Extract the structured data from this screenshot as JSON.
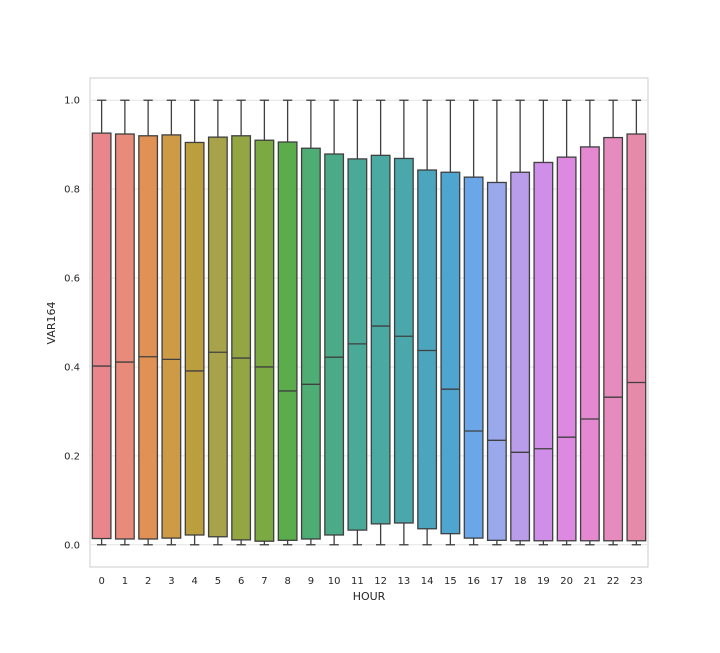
{
  "chart_data": {
    "type": "boxplot",
    "xlabel": "HOUR",
    "ylabel": "VAR164",
    "ylim": [
      -0.05,
      1.05
    ],
    "yticks": [
      "0.0",
      "0.2",
      "0.4",
      "0.6",
      "0.8",
      "1.0"
    ],
    "grid": "horizontal",
    "categories": [
      "0",
      "1",
      "2",
      "3",
      "4",
      "5",
      "6",
      "7",
      "8",
      "9",
      "10",
      "11",
      "12",
      "13",
      "14",
      "15",
      "16",
      "17",
      "18",
      "19",
      "20",
      "21",
      "22",
      "23"
    ],
    "boxes": [
      {
        "whislo": 0.0,
        "q1": 0.014,
        "med": 0.402,
        "q3": 0.926,
        "whishi": 1.0,
        "color": "#e8868c"
      },
      {
        "whislo": 0.0,
        "q1": 0.013,
        "med": 0.411,
        "q3": 0.924,
        "whishi": 1.0,
        "color": "#e88b7a"
      },
      {
        "whislo": 0.0,
        "q1": 0.013,
        "med": 0.423,
        "q3": 0.92,
        "whishi": 1.0,
        "color": "#e19154"
      },
      {
        "whislo": 0.0,
        "q1": 0.015,
        "med": 0.417,
        "q3": 0.922,
        "whishi": 1.0,
        "color": "#cd9a45"
      },
      {
        "whislo": 0.0,
        "q1": 0.022,
        "med": 0.391,
        "q3": 0.905,
        "whishi": 1.0,
        "color": "#bb9e3e"
      },
      {
        "whislo": 0.0,
        "q1": 0.018,
        "med": 0.433,
        "q3": 0.917,
        "whishi": 1.0,
        "color": "#a8a34a"
      },
      {
        "whislo": 0.0,
        "q1": 0.011,
        "med": 0.42,
        "q3": 0.92,
        "whishi": 1.0,
        "color": "#93a643"
      },
      {
        "whislo": 0.0,
        "q1": 0.008,
        "med": 0.4,
        "q3": 0.91,
        "whishi": 1.0,
        "color": "#7ca941"
      },
      {
        "whislo": 0.0,
        "q1": 0.01,
        "med": 0.346,
        "q3": 0.906,
        "whishi": 1.0,
        "color": "#5aad4a"
      },
      {
        "whislo": 0.0,
        "q1": 0.013,
        "med": 0.361,
        "q3": 0.892,
        "whishi": 1.0,
        "color": "#4dad74"
      },
      {
        "whislo": 0.0,
        "q1": 0.022,
        "med": 0.422,
        "q3": 0.879,
        "whishi": 1.0,
        "color": "#4bab88"
      },
      {
        "whislo": 0.0,
        "q1": 0.033,
        "med": 0.452,
        "q3": 0.868,
        "whishi": 1.0,
        "color": "#4aaa97"
      },
      {
        "whislo": 0.0,
        "q1": 0.047,
        "med": 0.492,
        "q3": 0.876,
        "whishi": 1.0,
        "color": "#4aa9a3"
      },
      {
        "whislo": 0.0,
        "q1": 0.049,
        "med": 0.469,
        "q3": 0.869,
        "whishi": 1.0,
        "color": "#4aa8ad"
      },
      {
        "whislo": 0.0,
        "q1": 0.036,
        "med": 0.437,
        "q3": 0.843,
        "whishi": 1.0,
        "color": "#4ba6bd"
      },
      {
        "whislo": 0.0,
        "q1": 0.025,
        "med": 0.35,
        "q3": 0.838,
        "whishi": 1.0,
        "color": "#4ea5d0"
      },
      {
        "whislo": 0.0,
        "q1": 0.015,
        "med": 0.256,
        "q3": 0.827,
        "whishi": 1.0,
        "color": "#6aa6e8"
      },
      {
        "whislo": 0.0,
        "q1": 0.01,
        "med": 0.235,
        "q3": 0.815,
        "whishi": 1.0,
        "color": "#9aa8ec"
      },
      {
        "whislo": 0.0,
        "q1": 0.009,
        "med": 0.208,
        "q3": 0.838,
        "whishi": 1.0,
        "color": "#b99cea"
      },
      {
        "whislo": 0.0,
        "q1": 0.009,
        "med": 0.216,
        "q3": 0.86,
        "whishi": 1.0,
        "color": "#cf8fe8"
      },
      {
        "whislo": 0.0,
        "q1": 0.009,
        "med": 0.242,
        "q3": 0.872,
        "whishi": 1.0,
        "color": "#dd89e2"
      },
      {
        "whislo": 0.0,
        "q1": 0.009,
        "med": 0.283,
        "q3": 0.895,
        "whishi": 1.0,
        "color": "#e388d1"
      },
      {
        "whislo": 0.0,
        "q1": 0.009,
        "med": 0.332,
        "q3": 0.916,
        "whishi": 1.0,
        "color": "#e68bbd"
      },
      {
        "whislo": 0.0,
        "q1": 0.009,
        "med": 0.365,
        "q3": 0.924,
        "whishi": 1.0,
        "color": "#e58aa8"
      }
    ]
  }
}
